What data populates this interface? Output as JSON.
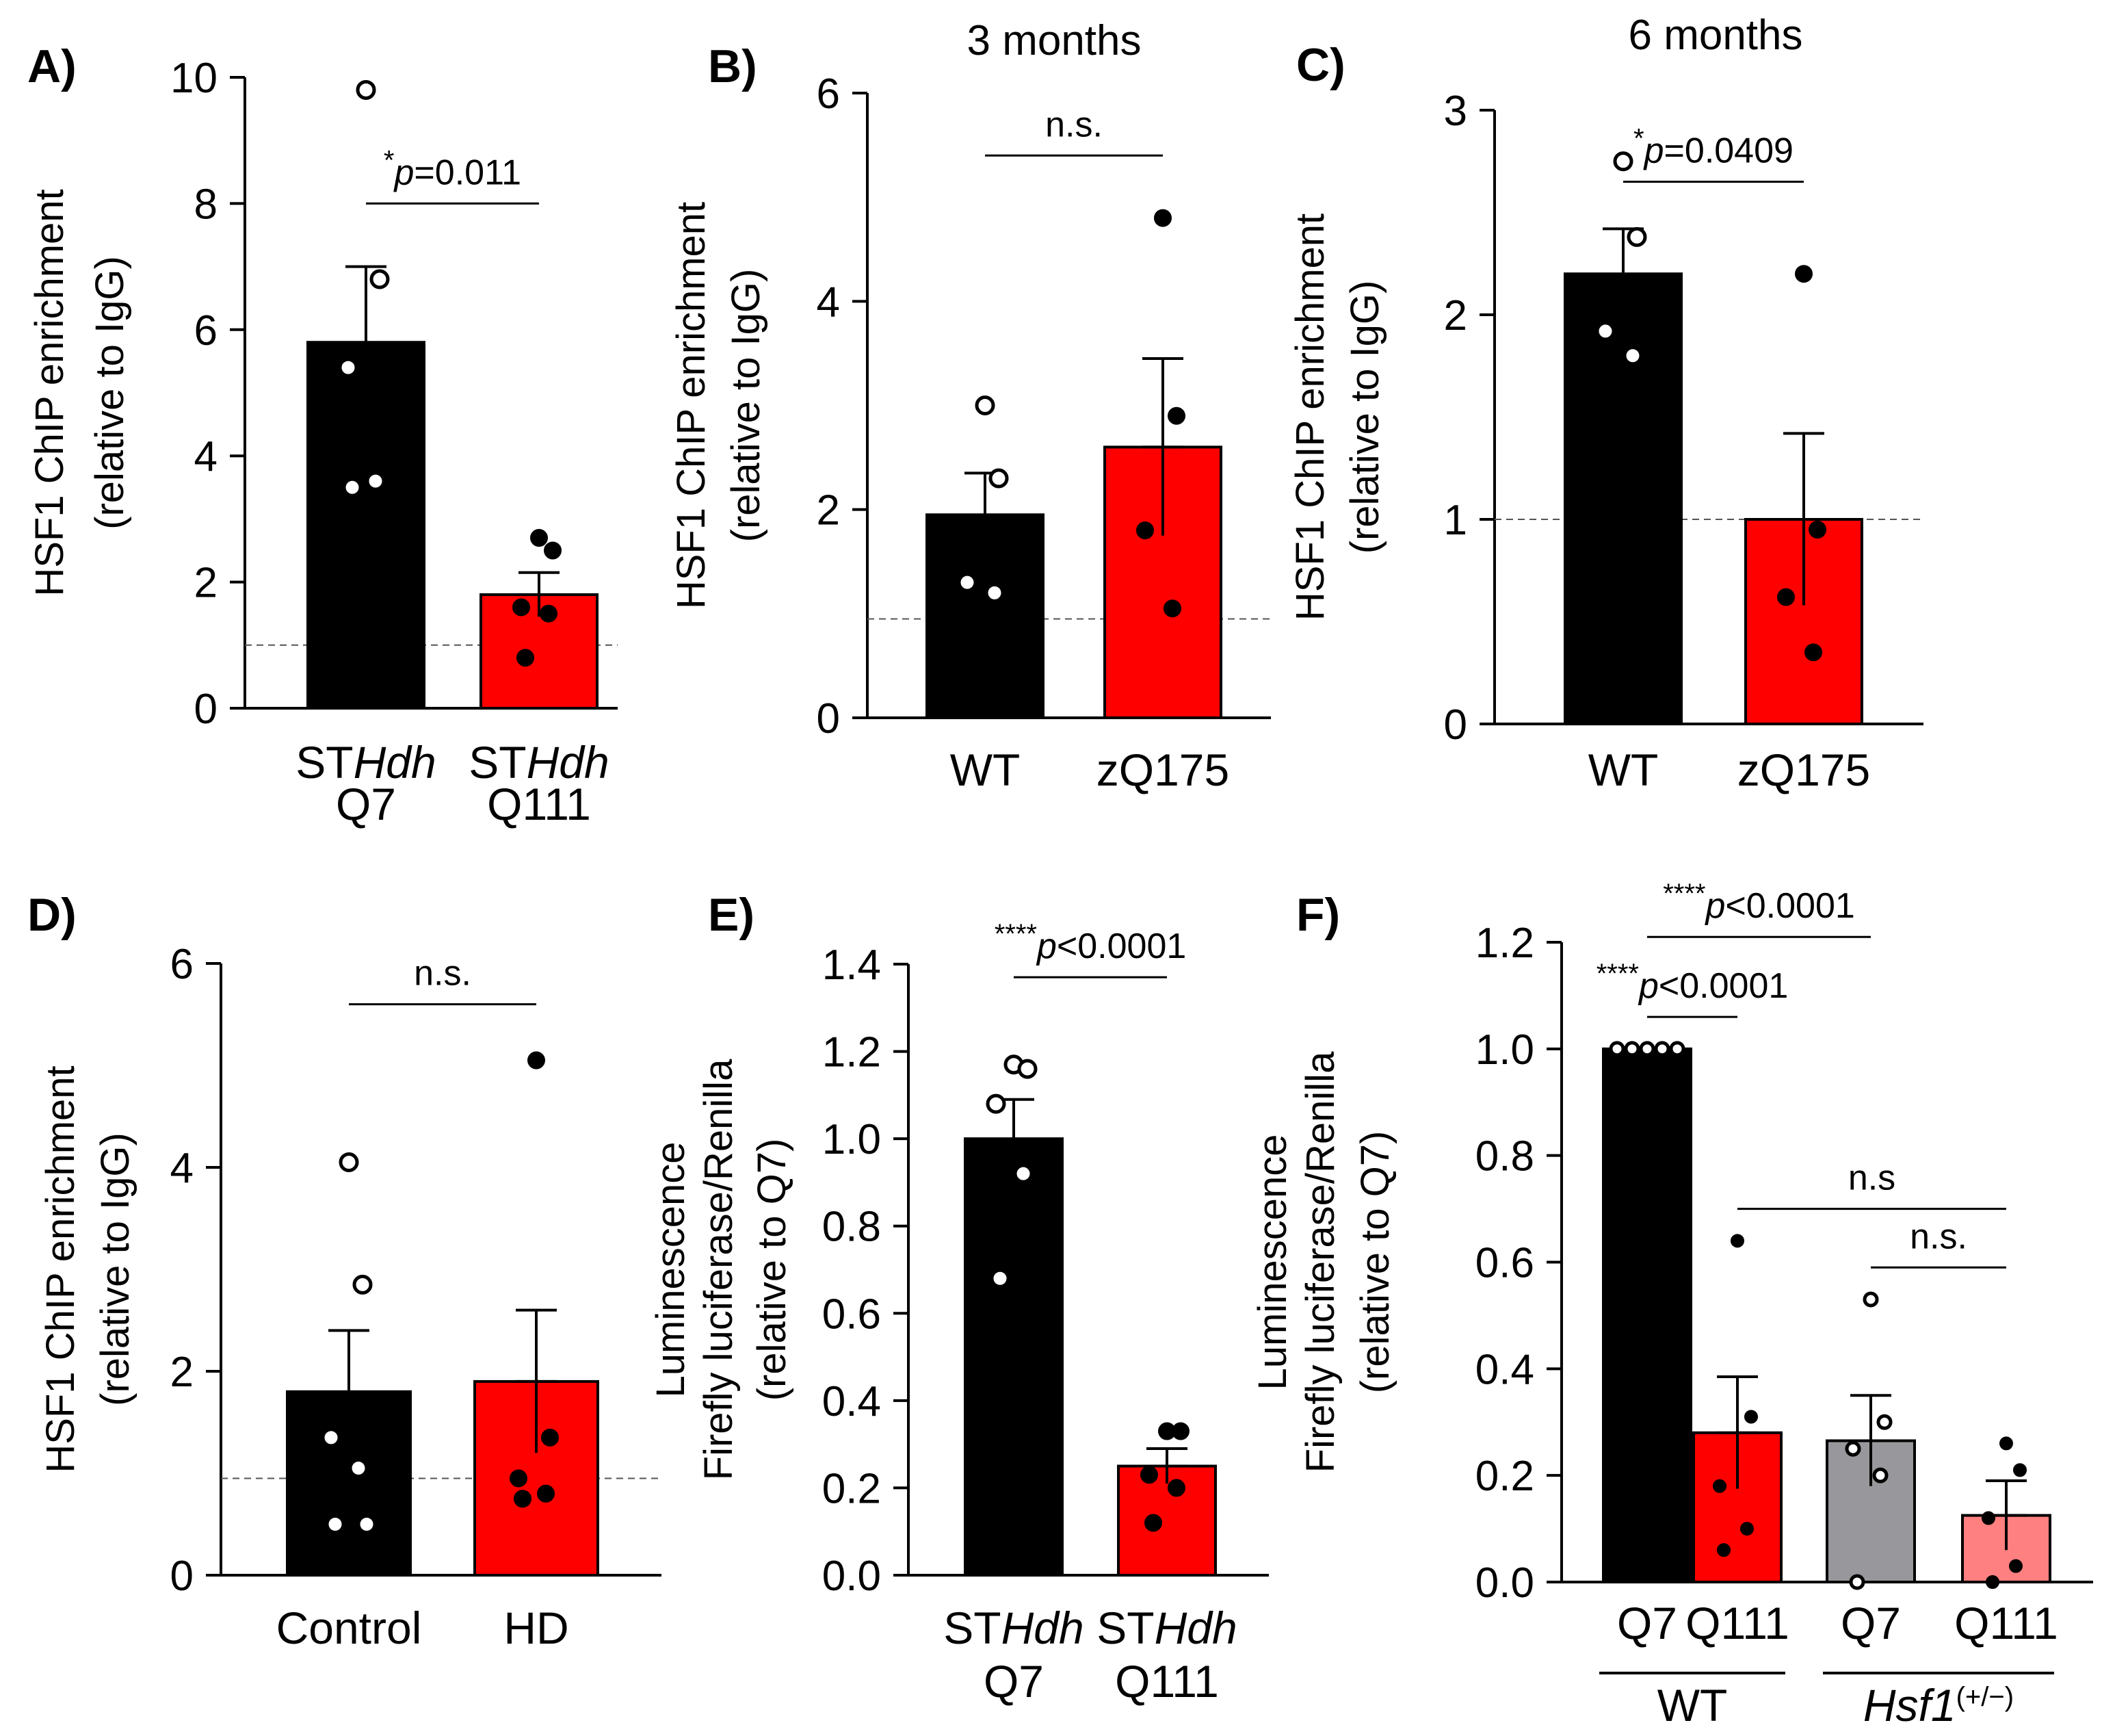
{
  "chart_data": [
    {
      "panel": "A)",
      "type": "bar",
      "title": "",
      "ylabel": [
        "HSF1 ChIP enrichment",
        "(relative to IgG)"
      ],
      "ylim": [
        0,
        10
      ],
      "yticks": [
        0,
        2,
        4,
        6,
        8,
        10
      ],
      "baseline": 1.0,
      "categories": [
        {
          "line1": "ST",
          "line1_italic": "Hdh",
          "line2": "Q7",
          "value": 5.8,
          "sem": 1.2,
          "color": "#000000",
          "points": [
            9.8,
            6.8,
            5.4,
            3.6,
            3.5
          ],
          "hollow": true
        },
        {
          "line1": "ST",
          "line1_italic": "Hdh",
          "line2": "Q111",
          "value": 1.8,
          "sem": 0.35,
          "color": "#ff0000",
          "points": [
            2.7,
            2.5,
            1.6,
            1.5,
            0.8
          ],
          "hollow": false
        }
      ],
      "comparisons": [
        {
          "from": 0,
          "to": 1,
          "y": 8.0,
          "stars": "*",
          "italic": "p",
          "rest": "=0.011"
        }
      ]
    },
    {
      "panel": "B)",
      "type": "bar",
      "title": "3 months",
      "ylabel": [
        "HSF1 ChIP enrichment",
        "(relative to IgG)"
      ],
      "ylim": [
        0,
        6
      ],
      "yticks": [
        0,
        2,
        4,
        6
      ],
      "baseline": 0.95,
      "categories": [
        {
          "line1": "WT",
          "line1_italic": "",
          "line2": "",
          "value": 1.95,
          "sem": 0.4,
          "color": "#000000",
          "points": [
            3.0,
            2.3,
            1.3,
            1.2
          ],
          "hollow": true
        },
        {
          "line1": "zQ175",
          "line1_italic": "",
          "line2": "",
          "value": 2.6,
          "sem": 0.85,
          "color": "#ff0000",
          "points": [
            4.8,
            2.9,
            1.8,
            1.05
          ],
          "hollow": false
        }
      ],
      "comparisons": [
        {
          "from": 0,
          "to": 1,
          "y": 5.4,
          "stars": "",
          "italic": "",
          "rest": "n.s."
        }
      ]
    },
    {
      "panel": "C)",
      "type": "bar",
      "title": "6 months",
      "ylabel": [
        "HSF1 ChIP enrichment",
        "(relative to IgG)"
      ],
      "ylim": [
        0,
        3
      ],
      "yticks": [
        0,
        1,
        2,
        3
      ],
      "baseline": 1.0,
      "categories": [
        {
          "line1": "WT",
          "line1_italic": "",
          "line2": "",
          "value": 2.2,
          "sem": 0.22,
          "color": "#000000",
          "points": [
            2.75,
            2.38,
            1.92,
            1.8
          ],
          "hollow": true
        },
        {
          "line1": "zQ175",
          "line1_italic": "",
          "line2": "",
          "value": 1.0,
          "sem": 0.42,
          "color": "#ff0000",
          "points": [
            2.2,
            0.95,
            0.62,
            0.35
          ],
          "hollow": false
        }
      ],
      "comparisons": [
        {
          "from": 0,
          "to": 1,
          "y": 2.65,
          "stars": "*",
          "italic": "p",
          "rest": "=0.0409"
        }
      ]
    },
    {
      "panel": "D)",
      "type": "bar",
      "title": "",
      "ylabel": [
        "HSF1 ChIP enrichment",
        "(relative to IgG)"
      ],
      "ylim": [
        0,
        6
      ],
      "yticks": [
        0,
        2,
        4,
        6
      ],
      "baseline": 0.95,
      "categories": [
        {
          "line1": "Control",
          "line1_italic": "",
          "line2": "",
          "value": 1.8,
          "sem": 0.6,
          "color": "#000000",
          "points": [
            4.05,
            2.85,
            1.35,
            1.05,
            0.5,
            0.5
          ],
          "hollow": true
        },
        {
          "line1": "HD",
          "line1_italic": "",
          "line2": "",
          "value": 1.9,
          "sem": 0.7,
          "color": "#ff0000",
          "points": [
            5.05,
            1.35,
            0.95,
            0.8,
            0.75
          ],
          "hollow": false
        }
      ],
      "comparisons": [
        {
          "from": 0,
          "to": 1,
          "y": 5.6,
          "stars": "",
          "italic": "",
          "rest": "n.s."
        }
      ]
    },
    {
      "panel": "E)",
      "type": "bar",
      "title": "",
      "ylabel": [
        "Luminescence",
        "Firefly luciferase/Renilla",
        "(relative to Q7)"
      ],
      "ylim": [
        0,
        1.4
      ],
      "yticks": [
        "0.0",
        "0.2",
        "0.4",
        "0.6",
        "0.8",
        "1.0",
        "1.2",
        "1.4"
      ],
      "baseline": null,
      "categories": [
        {
          "line1": "ST",
          "line1_italic": "Hdh",
          "line2": "Q7",
          "value": 1.0,
          "sem": 0.09,
          "color": "#000000",
          "points": [
            1.17,
            1.16,
            1.08,
            0.92,
            0.68
          ],
          "hollow": true
        },
        {
          "line1": "ST",
          "line1_italic": "Hdh",
          "line2": "Q111",
          "value": 0.25,
          "sem": 0.04,
          "color": "#ff0000",
          "points": [
            0.33,
            0.33,
            0.23,
            0.2,
            0.12
          ],
          "hollow": false
        }
      ],
      "comparisons": [
        {
          "from": 0,
          "to": 1,
          "y": 1.37,
          "stars": "****",
          "italic": "p",
          "rest": "<0.0001"
        }
      ]
    },
    {
      "panel": "F)",
      "type": "bar",
      "title": "",
      "ylabel": [
        "Luminescence",
        "Firefly luciferase/Renilla",
        "(relative to Q7)"
      ],
      "ylim": [
        0,
        1.2
      ],
      "yticks": [
        "0.0",
        "0.2",
        "0.4",
        "0.6",
        "0.8",
        "1.0",
        "1.2"
      ],
      "baseline": null,
      "categories": [
        {
          "line1": "Q7",
          "line1_italic": "",
          "line2": "",
          "value": 1.0,
          "sem": 0,
          "color": "#000000",
          "points": [
            1.0,
            1.0,
            1.0,
            1.0,
            1.0
          ],
          "hollow": true
        },
        {
          "line1": "Q111",
          "line1_italic": "",
          "line2": "",
          "value": 0.28,
          "sem": 0.105,
          "color": "#ff0000",
          "points": [
            0.64,
            0.31,
            0.18,
            0.1,
            0.06
          ],
          "hollow": false
        },
        {
          "line1": "Q7",
          "line1_italic": "",
          "line2": "",
          "value": 0.265,
          "sem": 0.085,
          "color": "#98989c",
          "points": [
            0.53,
            0.3,
            0.25,
            0.2,
            0.0
          ],
          "hollow": true
        },
        {
          "line1": "Q111",
          "line1_italic": "",
          "line2": "",
          "value": 0.125,
          "sem": 0.065,
          "color": "#ff8080",
          "points": [
            0.26,
            0.21,
            0.12,
            0.03,
            0.0
          ],
          "hollow": false
        }
      ],
      "comparisons": [
        {
          "from": 0,
          "to": 1,
          "y": 1.06,
          "stars": "****",
          "italic": "p",
          "rest": "<0.0001"
        },
        {
          "from": 0,
          "to": 2,
          "y": 1.21,
          "stars": "****",
          "italic": "p",
          "rest": "<0.0001"
        },
        {
          "from": 1,
          "to": 3,
          "y": 0.7,
          "stars": "",
          "italic": "",
          "rest": "n.s"
        },
        {
          "from": 2,
          "to": 3,
          "y": 0.59,
          "stars": "",
          "italic": "",
          "rest": "n.s."
        }
      ],
      "groups": [
        {
          "label": "WT",
          "italic": "",
          "sup": "",
          "from": 0,
          "to": 1
        },
        {
          "label": "",
          "italic": "Hsf1",
          "sup": "(+/−)",
          "from": 2,
          "to": 3
        }
      ]
    }
  ]
}
